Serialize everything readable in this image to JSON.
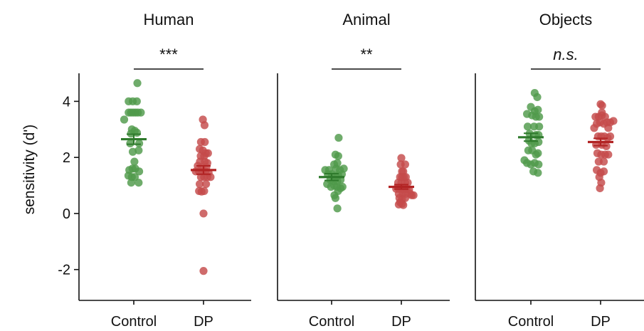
{
  "chart_data": {
    "type": "scatter",
    "ylabel": "sensitivity (d')",
    "ylim": [
      -3.1,
      5.0
    ],
    "yticks": [
      -2,
      0,
      2,
      4
    ],
    "ytick_labels": [
      "-2",
      "0",
      "2",
      "4"
    ],
    "categories": [
      "Control",
      "DP"
    ],
    "colors": {
      "Control": "#4f9a4b",
      "DP": "#c44a4a",
      "mean_Control": "#2f7a2c",
      "mean_DP": "#b22424"
    },
    "panels": [
      {
        "title": "Human",
        "significance": "***",
        "significance_italic": false,
        "series": [
          {
            "name": "Control",
            "mean": 2.65,
            "sem": 0.18,
            "points": [
              [
                -0.75,
                3.35
              ],
              [
                0.28,
                4.65
              ],
              [
                -0.4,
                4.0
              ],
              [
                -0.08,
                4.0
              ],
              [
                0.24,
                4.0
              ],
              [
                -0.4,
                3.6
              ],
              [
                -0.22,
                3.6
              ],
              [
                -0.04,
                3.6
              ],
              [
                0.14,
                3.6
              ],
              [
                0.32,
                3.6
              ],
              [
                0.55,
                3.6
              ],
              [
                -0.15,
                3.0
              ],
              [
                0.08,
                2.95
              ],
              [
                -0.22,
                2.85
              ],
              [
                0.25,
                2.88
              ],
              [
                -0.28,
                2.5
              ],
              [
                0.42,
                2.5
              ],
              [
                -0.08,
                2.2
              ],
              [
                0.38,
                2.25
              ],
              [
                0.05,
                1.85
              ],
              [
                -0.35,
                1.55
              ],
              [
                -0.1,
                1.6
              ],
              [
                0.12,
                1.6
              ],
              [
                0.42,
                1.5
              ],
              [
                -0.42,
                1.35
              ],
              [
                -0.15,
                1.3
              ],
              [
                0.08,
                1.3
              ],
              [
                -0.2,
                1.1
              ],
              [
                0.38,
                1.1
              ]
            ]
          },
          {
            "name": "DP",
            "mean": 1.55,
            "sem": 0.15,
            "points": [
              [
                -0.05,
                3.35
              ],
              [
                0.08,
                3.15
              ],
              [
                -0.2,
                2.55
              ],
              [
                0.1,
                2.55
              ],
              [
                -0.3,
                2.3
              ],
              [
                -0.05,
                2.25
              ],
              [
                0.35,
                2.15
              ],
              [
                -0.22,
                2.05
              ],
              [
                0.05,
                2.05
              ],
              [
                0.18,
                2.15
              ],
              [
                -0.28,
                1.85
              ],
              [
                0.1,
                1.85
              ],
              [
                0.3,
                1.8
              ],
              [
                -0.45,
                1.7
              ],
              [
                -0.15,
                1.65
              ],
              [
                0.22,
                1.65
              ],
              [
                -0.6,
                1.5
              ],
              [
                -0.35,
                1.5
              ],
              [
                -0.1,
                1.5
              ],
              [
                0.15,
                1.5
              ],
              [
                0.4,
                1.45
              ],
              [
                -0.2,
                1.3
              ],
              [
                0.05,
                1.3
              ],
              [
                0.3,
                1.3
              ],
              [
                0.55,
                1.3
              ],
              [
                -0.3,
                1.05
              ],
              [
                0.2,
                1.05
              ],
              [
                -0.35,
                0.8
              ],
              [
                -0.15,
                0.78
              ],
              [
                0.05,
                0.8
              ],
              [
                0.0,
                0.0
              ],
              [
                0.0,
                -2.05
              ]
            ]
          }
        ]
      },
      {
        "title": "Animal",
        "significance": "**",
        "significance_italic": false,
        "series": [
          {
            "name": "Control",
            "mean": 1.3,
            "sem": 0.12,
            "points": [
              [
                0.55,
                2.7
              ],
              [
                0.3,
                2.1
              ],
              [
                0.52,
                2.05
              ],
              [
                0.2,
                1.75
              ],
              [
                0.45,
                1.8
              ],
              [
                -0.5,
                1.55
              ],
              [
                -0.2,
                1.55
              ],
              [
                0.35,
                1.6
              ],
              [
                0.65,
                1.55
              ],
              [
                0.95,
                1.6
              ],
              [
                -0.3,
                1.4
              ],
              [
                0.0,
                1.4
              ],
              [
                0.25,
                1.35
              ],
              [
                0.52,
                1.35
              ],
              [
                0.8,
                1.4
              ],
              [
                -0.1,
                1.2
              ],
              [
                0.15,
                1.15
              ],
              [
                0.45,
                1.15
              ],
              [
                0.7,
                1.2
              ],
              [
                -0.35,
                1.05
              ],
              [
                -0.05,
                0.95
              ],
              [
                0.2,
                1.0
              ],
              [
                0.42,
                0.95
              ],
              [
                0.7,
                0.9
              ],
              [
                0.85,
                0.95
              ],
              [
                0.5,
                0.8
              ],
              [
                0.3,
                0.55
              ],
              [
                0.22,
                0.65
              ],
              [
                0.45,
                0.18
              ]
            ]
          },
          {
            "name": "DP",
            "mean": 0.95,
            "sem": 0.08,
            "points": [
              [
                0.0,
                1.98
              ],
              [
                -0.05,
                1.75
              ],
              [
                0.3,
                1.75
              ],
              [
                0.05,
                1.5
              ],
              [
                0.15,
                1.5
              ],
              [
                -0.1,
                1.3
              ],
              [
                0.05,
                1.3
              ],
              [
                0.2,
                1.3
              ],
              [
                0.35,
                1.3
              ],
              [
                -0.25,
                1.1
              ],
              [
                0.0,
                1.1
              ],
              [
                0.3,
                1.1
              ],
              [
                0.5,
                1.1
              ],
              [
                -0.4,
                0.88
              ],
              [
                -0.2,
                0.88
              ],
              [
                0.0,
                0.88
              ],
              [
                0.2,
                0.85
              ],
              [
                0.4,
                0.88
              ],
              [
                0.6,
                0.85
              ],
              [
                -0.2,
                0.7
              ],
              [
                0.1,
                0.7
              ],
              [
                0.35,
                0.7
              ],
              [
                0.7,
                0.7
              ],
              [
                0.8,
                0.65
              ],
              [
                0.95,
                0.65
              ],
              [
                -0.15,
                0.55
              ],
              [
                0.05,
                0.5
              ],
              [
                0.3,
                0.55
              ],
              [
                -0.1,
                0.4
              ],
              [
                0.05,
                0.35
              ],
              [
                0.15,
                0.3
              ],
              [
                -0.2,
                0.32
              ]
            ]
          }
        ]
      },
      {
        "title": "Objects",
        "significance": "n.s.",
        "significance_italic": true,
        "series": [
          {
            "name": "Control",
            "mean": 2.72,
            "sem": 0.14,
            "points": [
              [
                0.3,
                4.3
              ],
              [
                0.5,
                4.15
              ],
              [
                0.0,
                3.8
              ],
              [
                0.3,
                3.65
              ],
              [
                0.55,
                3.7
              ],
              [
                -0.3,
                3.55
              ],
              [
                0.1,
                3.5
              ],
              [
                0.4,
                3.45
              ],
              [
                0.65,
                3.45
              ],
              [
                -0.25,
                3.1
              ],
              [
                0.25,
                3.1
              ],
              [
                0.65,
                3.1
              ],
              [
                -0.1,
                2.85
              ],
              [
                0.4,
                2.8
              ],
              [
                0.6,
                2.8
              ],
              [
                -0.15,
                2.6
              ],
              [
                0.05,
                2.5
              ],
              [
                0.3,
                2.5
              ],
              [
                0.6,
                2.55
              ],
              [
                -0.2,
                2.25
              ],
              [
                0.1,
                2.25
              ],
              [
                0.4,
                2.1
              ],
              [
                0.55,
                2.15
              ],
              [
                -0.5,
                1.9
              ],
              [
                -0.3,
                1.8
              ],
              [
                0.0,
                1.75
              ],
              [
                0.3,
                1.8
              ],
              [
                0.6,
                1.75
              ],
              [
                0.2,
                1.5
              ],
              [
                0.55,
                1.45
              ]
            ]
          },
          {
            "name": "DP",
            "mean": 2.55,
            "sem": 0.13,
            "points": [
              [
                0.0,
                3.9
              ],
              [
                0.12,
                3.85
              ],
              [
                0.1,
                3.6
              ],
              [
                -0.4,
                3.45
              ],
              [
                -0.15,
                3.45
              ],
              [
                0.1,
                3.5
              ],
              [
                0.35,
                3.45
              ],
              [
                -0.3,
                3.2
              ],
              [
                -0.05,
                3.25
              ],
              [
                0.25,
                3.2
              ],
              [
                0.5,
                3.25
              ],
              [
                0.75,
                3.25
              ],
              [
                1.0,
                3.3
              ],
              [
                -0.5,
                3.05
              ],
              [
                0.6,
                3.05
              ],
              [
                -0.2,
                2.75
              ],
              [
                0.05,
                2.75
              ],
              [
                0.3,
                2.75
              ],
              [
                0.55,
                2.7
              ],
              [
                0.75,
                2.75
              ],
              [
                -0.35,
                2.45
              ],
              [
                0.1,
                2.45
              ],
              [
                0.45,
                2.4
              ],
              [
                -0.25,
                2.15
              ],
              [
                0.05,
                2.1
              ],
              [
                0.35,
                2.1
              ],
              [
                0.6,
                2.1
              ],
              [
                -0.15,
                1.85
              ],
              [
                0.25,
                1.85
              ],
              [
                -0.3,
                1.55
              ],
              [
                0.0,
                1.45
              ],
              [
                0.25,
                1.5
              ],
              [
                -0.1,
                1.3
              ],
              [
                0.05,
                1.1
              ],
              [
                -0.05,
                0.9
              ]
            ]
          }
        ]
      }
    ]
  }
}
